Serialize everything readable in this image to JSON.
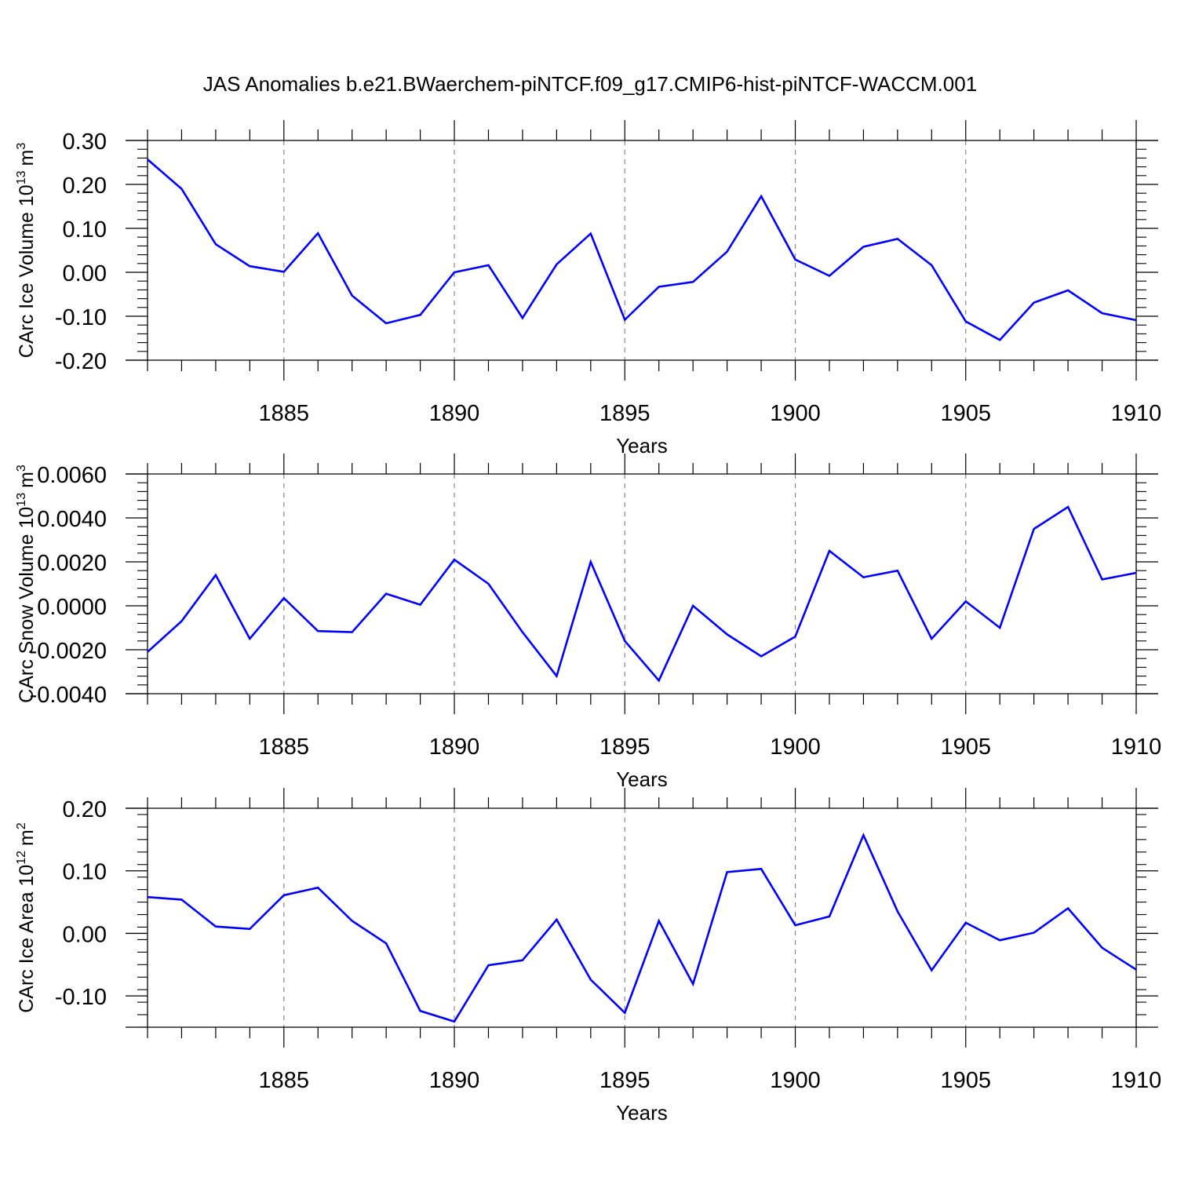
{
  "title": "JAS Anomalies b.e21.BWaerchem-piNTCF.f09_g17.CMIP6-hist-piNTCF-WACCM.001",
  "colors": {
    "line": "#0000ff",
    "axis": "#000000",
    "grid": "#888888"
  },
  "chart_data": [
    {
      "type": "line",
      "ylabel_main": "CArc Ice Volume 10",
      "ylabel_exp": "13",
      "ylabel_unit": "m",
      "ylabel_unit_exp": "3",
      "xlabel": "Years",
      "xlim": [
        1881,
        1910
      ],
      "ylim": [
        -0.2,
        0.3
      ],
      "yticks": [
        -0.2,
        -0.1,
        0.0,
        0.1,
        0.2,
        0.3
      ],
      "ytick_labels": [
        "-0.20",
        "-0.10",
        "0.00",
        "0.10",
        "0.20",
        "0.30"
      ],
      "xticks": [
        1885,
        1890,
        1895,
        1900,
        1905,
        1910
      ],
      "xtick_labels": [
        "1885",
        "1890",
        "1895",
        "1900",
        "1905",
        "1910"
      ],
      "x": [
        1881,
        1882,
        1883,
        1884,
        1885,
        1886,
        1887,
        1888,
        1889,
        1890,
        1891,
        1892,
        1893,
        1894,
        1895,
        1896,
        1897,
        1898,
        1899,
        1900,
        1901,
        1902,
        1903,
        1904,
        1905,
        1906,
        1907,
        1908,
        1909,
        1910
      ],
      "values": [
        0.257,
        0.19,
        0.064,
        0.014,
        0.001,
        0.089,
        -0.053,
        -0.116,
        -0.097,
        0.0,
        0.016,
        -0.104,
        0.018,
        0.088,
        -0.108,
        -0.033,
        -0.022,
        0.047,
        0.173,
        0.029,
        -0.008,
        0.058,
        0.076,
        0.016,
        -0.112,
        -0.154,
        -0.069,
        -0.041,
        -0.093,
        -0.109
      ]
    },
    {
      "type": "line",
      "ylabel_main": "CArc Snow Volume 10",
      "ylabel_exp": "13",
      "ylabel_unit": "m",
      "ylabel_unit_exp": "3",
      "xlabel": "Years",
      "xlim": [
        1881,
        1910
      ],
      "ylim": [
        -0.004,
        0.006
      ],
      "yticks": [
        -0.004,
        -0.002,
        0.0,
        0.002,
        0.004,
        0.006
      ],
      "ytick_labels": [
        "-0.0040",
        "-0.0020",
        "0.0000",
        "0.0020",
        "0.0040",
        "0.0060"
      ],
      "xticks": [
        1885,
        1890,
        1895,
        1900,
        1905,
        1910
      ],
      "xtick_labels": [
        "1885",
        "1890",
        "1895",
        "1900",
        "1905",
        "1910"
      ],
      "x": [
        1881,
        1882,
        1883,
        1884,
        1885,
        1886,
        1887,
        1888,
        1889,
        1890,
        1891,
        1892,
        1893,
        1894,
        1895,
        1896,
        1897,
        1898,
        1899,
        1900,
        1901,
        1902,
        1903,
        1904,
        1905,
        1906,
        1907,
        1908,
        1909,
        1910
      ],
      "values": [
        -0.0021,
        -0.0007,
        0.0014,
        -0.0015,
        0.00035,
        -0.00115,
        -0.0012,
        0.00055,
        5e-05,
        0.0021,
        0.001,
        -0.0012,
        -0.0032,
        0.002,
        -0.0016,
        -0.0034,
        0.0,
        -0.0013,
        -0.0023,
        -0.0014,
        0.0025,
        0.0013,
        0.0016,
        -0.0015,
        0.0002,
        -0.001,
        0.0035,
        0.0045,
        0.0012,
        0.0015
      ]
    },
    {
      "type": "line",
      "ylabel_main": "CArc Ice Area 10",
      "ylabel_exp": "12",
      "ylabel_unit": "m",
      "ylabel_unit_exp": "2",
      "xlabel": "Years",
      "xlim": [
        1881,
        1910
      ],
      "ylim": [
        -0.15,
        0.2
      ],
      "yticks": [
        -0.1,
        0.0,
        0.1,
        0.2
      ],
      "ytick_labels": [
        "-0.10",
        "0.00",
        "0.10",
        "0.20"
      ],
      "xticks": [
        1885,
        1890,
        1895,
        1900,
        1905,
        1910
      ],
      "xtick_labels": [
        "1885",
        "1890",
        "1895",
        "1900",
        "1905",
        "1910"
      ],
      "x": [
        1881,
        1882,
        1883,
        1884,
        1885,
        1886,
        1887,
        1888,
        1889,
        1890,
        1891,
        1892,
        1893,
        1894,
        1895,
        1896,
        1897,
        1898,
        1899,
        1900,
        1901,
        1902,
        1903,
        1904,
        1905,
        1906,
        1907,
        1908,
        1909,
        1910
      ],
      "values": [
        0.058,
        0.054,
        0.011,
        0.007,
        0.061,
        0.073,
        0.02,
        -0.016,
        -0.124,
        -0.141,
        -0.051,
        -0.043,
        0.022,
        -0.074,
        -0.127,
        0.02,
        -0.081,
        0.098,
        0.103,
        0.013,
        0.027,
        0.157,
        0.035,
        -0.059,
        0.017,
        -0.011,
        0.001,
        0.04,
        -0.023,
        -0.058
      ]
    }
  ]
}
